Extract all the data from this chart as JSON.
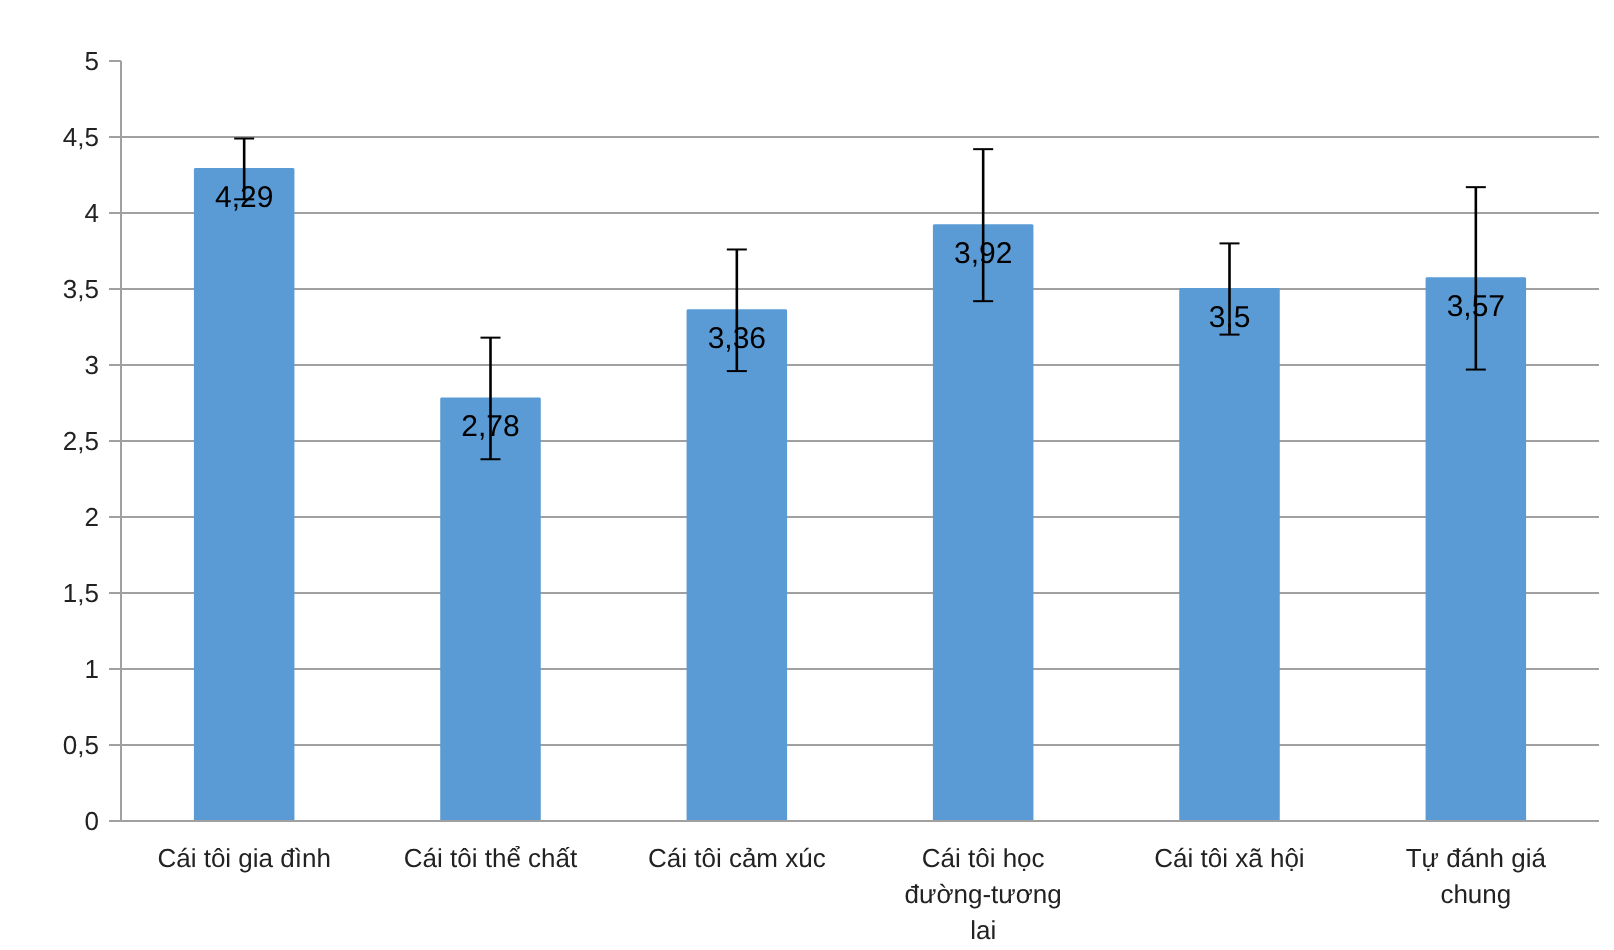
{
  "chart_data": {
    "type": "bar",
    "categories": [
      "Cái tôi gia đình",
      "Cái tôi thể chất",
      "Cái tôi cảm xúc",
      "Cái tôi học đường-tương lai",
      "Cái tôi xã hội",
      "Tự đánh giá chung"
    ],
    "values": [
      4.29,
      2.78,
      3.36,
      3.92,
      3.5,
      3.57
    ],
    "value_labels": [
      "4,29",
      "2,78",
      "3,36",
      "3,92",
      "3,5",
      "3,57"
    ],
    "errors": [
      0.2,
      0.4,
      0.4,
      0.5,
      0.3,
      0.6
    ],
    "color": "#5b9bd5",
    "ylim": [
      0,
      5
    ],
    "yticks": [
      0,
      {
        "value": 0.5,
        "label": "0,5"
      },
      1,
      {
        "value": 1.5,
        "label": "1,5"
      },
      2,
      {
        "value": 2.5,
        "label": "2,5"
      },
      3,
      {
        "value": 3.5,
        "label": "3,5"
      },
      4,
      {
        "value": 4.5,
        "label": "4,5"
      },
      5
    ],
    "grid": "y"
  }
}
